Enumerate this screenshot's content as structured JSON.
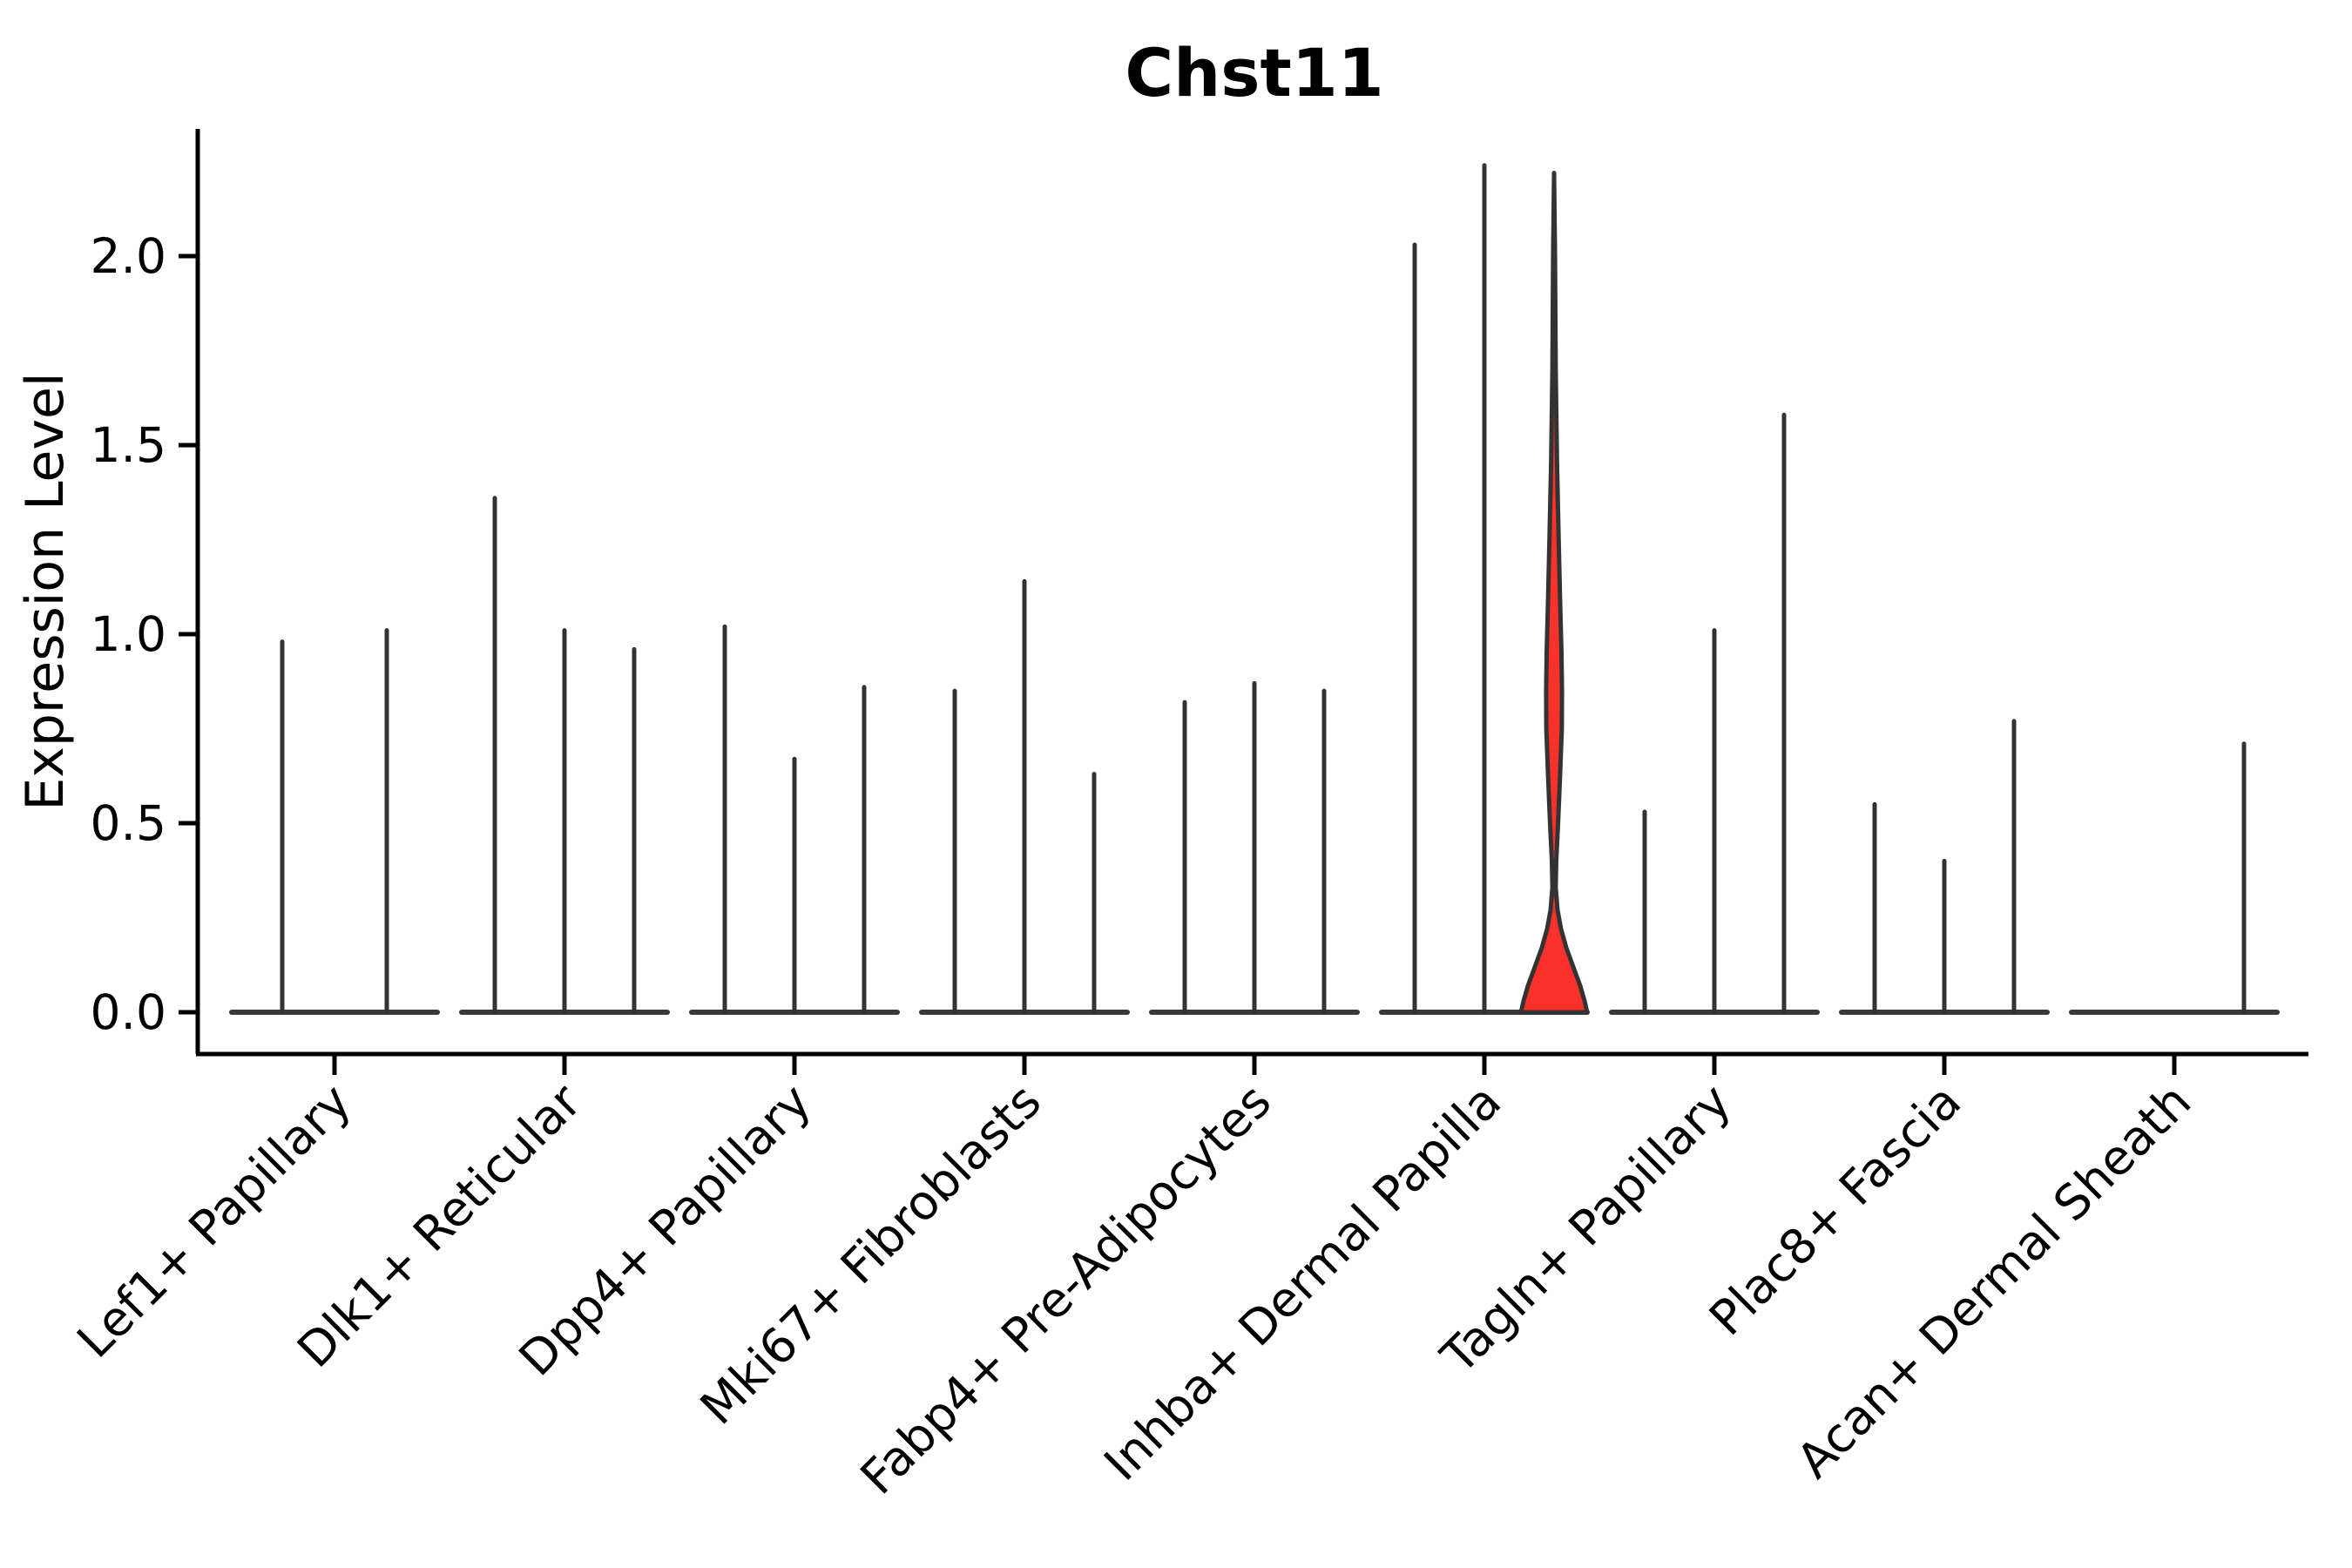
{
  "title": "Chst11",
  "colors": {
    "background": "#ffffff",
    "axis": "#000000",
    "violin_outline": "#333333",
    "baseline_bar": "#383838",
    "highlight_fill": "#f8312a",
    "text": "#000000"
  },
  "chart_data": {
    "type": "violin",
    "title": "Chst11",
    "xlabel": "",
    "ylabel": "Expression Level",
    "ylim": [
      0,
      2.35
    ],
    "yticks": [
      0.0,
      0.5,
      1.0,
      1.5,
      2.0
    ],
    "grid": false,
    "legend_position": "none",
    "x_tick_label_rotation_deg": 45,
    "categories": [
      "Lef1+ Papillary",
      "Dlk1+ Reticular",
      "Dpp4+ Papillary",
      "Mki67+ Fibroblasts",
      "Fabp4+ Pre-Adipocytes",
      "Inhba+ Dermal Papilla",
      "Tagln+ Papillary",
      "Plac8+ Fascia",
      "Acan+ Dermal Sheath"
    ],
    "groups": [
      {
        "category": "Lef1+ Papillary",
        "violins": [
          {
            "max": 0.98
          },
          {
            "max": 1.01
          }
        ]
      },
      {
        "category": "Dlk1+ Reticular",
        "violins": [
          {
            "max": 1.36
          },
          {
            "max": 1.01
          },
          {
            "max": 0.96
          }
        ]
      },
      {
        "category": "Dpp4+ Papillary",
        "violins": [
          {
            "max": 1.02
          },
          {
            "max": 0.67
          },
          {
            "max": 0.86
          }
        ]
      },
      {
        "category": "Mki67+ Fibroblasts",
        "violins": [
          {
            "max": 0.85
          },
          {
            "max": 1.14
          },
          {
            "max": 0.63
          }
        ]
      },
      {
        "category": "Fabp4+ Pre-Adipocytes",
        "violins": [
          {
            "max": 0.82
          },
          {
            "max": 0.87
          },
          {
            "max": 0.85
          }
        ]
      },
      {
        "category": "Inhba+ Dermal Papilla",
        "violins": [
          {
            "max": 2.03
          },
          {
            "max": 2.24
          },
          {
            "max": 2.22,
            "highlight": true
          }
        ]
      },
      {
        "category": "Tagln+ Papillary",
        "violins": [
          {
            "max": 0.53
          },
          {
            "max": 1.01
          },
          {
            "max": 1.58
          }
        ]
      },
      {
        "category": "Plac8+ Fascia",
        "violins": [
          {
            "max": 0.55
          },
          {
            "max": 0.4
          },
          {
            "max": 0.77
          }
        ]
      },
      {
        "category": "Acan+ Dermal Sheath",
        "violins": [
          {
            "max": 0.0
          },
          {
            "max": 0.0
          },
          {
            "max": 0.71
          }
        ]
      }
    ],
    "highlight_violin_profile": [
      [
        2.22,
        0.0
      ],
      [
        2.0,
        0.03
      ],
      [
        1.7,
        0.05
      ],
      [
        1.45,
        0.09
      ],
      [
        1.25,
        0.14
      ],
      [
        1.1,
        0.18
      ],
      [
        0.95,
        0.225
      ],
      [
        0.85,
        0.24
      ],
      [
        0.75,
        0.235
      ],
      [
        0.62,
        0.18
      ],
      [
        0.5,
        0.12
      ],
      [
        0.4,
        0.066
      ],
      [
        0.33,
        0.05
      ],
      [
        0.27,
        0.105
      ],
      [
        0.22,
        0.21
      ],
      [
        0.17,
        0.37
      ],
      [
        0.12,
        0.58
      ],
      [
        0.07,
        0.79
      ],
      [
        0.03,
        0.92
      ],
      [
        0.0,
        1.0
      ]
    ]
  }
}
